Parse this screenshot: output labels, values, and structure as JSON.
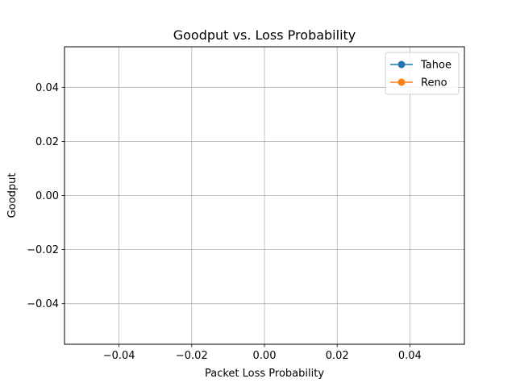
{
  "chart_data": {
    "type": "line",
    "title": "Goodput vs. Loss Probability",
    "xlabel": "Packet Loss Probability",
    "ylabel": "Goodput",
    "xlim": [
      -0.055,
      0.055
    ],
    "ylim": [
      -0.055,
      0.055
    ],
    "xticks": [
      -0.04,
      -0.02,
      0.0,
      0.02,
      0.04
    ],
    "yticks": [
      -0.04,
      -0.02,
      0.0,
      0.02,
      0.04
    ],
    "xtick_labels": [
      "−0.04",
      "−0.02",
      "0.00",
      "0.02",
      "0.04"
    ],
    "ytick_labels": [
      "−0.04",
      "−0.02",
      "0.00",
      "0.02",
      "0.04"
    ],
    "grid": true,
    "legend_position": "top-right",
    "series": [
      {
        "name": "Tahoe",
        "color": "#1f77b4",
        "marker": "circle",
        "x": [],
        "y": []
      },
      {
        "name": "Reno",
        "color": "#ff7f0e",
        "marker": "circle",
        "x": [],
        "y": []
      }
    ]
  }
}
